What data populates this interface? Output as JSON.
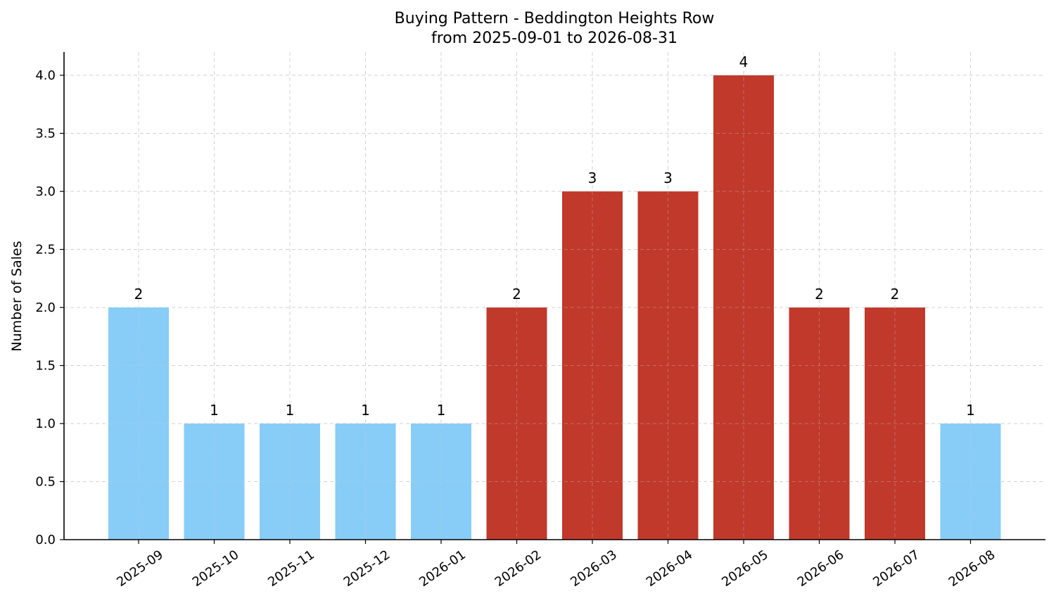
{
  "chart_data": {
    "type": "bar",
    "title": "Buying Pattern - Beddington Heights Row",
    "subtitle": "from 2025-09-01 to 2026-08-31",
    "xlabel": "",
    "ylabel": "Number of Sales",
    "ylim": [
      0,
      4.2
    ],
    "yticks": [
      "0.0",
      "0.5",
      "1.0",
      "1.5",
      "2.0",
      "2.5",
      "3.0",
      "3.5",
      "4.0"
    ],
    "grid": true,
    "categories": [
      "2025-09",
      "2025-10",
      "2025-11",
      "2025-12",
      "2026-01",
      "2026-02",
      "2026-03",
      "2026-04",
      "2026-05",
      "2026-06",
      "2026-07",
      "2026-08"
    ],
    "values": [
      2,
      1,
      1,
      1,
      1,
      2,
      3,
      3,
      4,
      2,
      2,
      1
    ],
    "data_labels": [
      "2",
      "1",
      "1",
      "1",
      "1",
      "2",
      "3",
      "3",
      "4",
      "2",
      "2",
      "1"
    ],
    "colors": {
      "low": "#87cdf7",
      "high": "#c0392b",
      "grid": "#cccccc",
      "axis": "#000000"
    },
    "bar_color_groups": [
      "low",
      "low",
      "low",
      "low",
      "low",
      "high",
      "high",
      "high",
      "high",
      "high",
      "high",
      "low"
    ]
  }
}
